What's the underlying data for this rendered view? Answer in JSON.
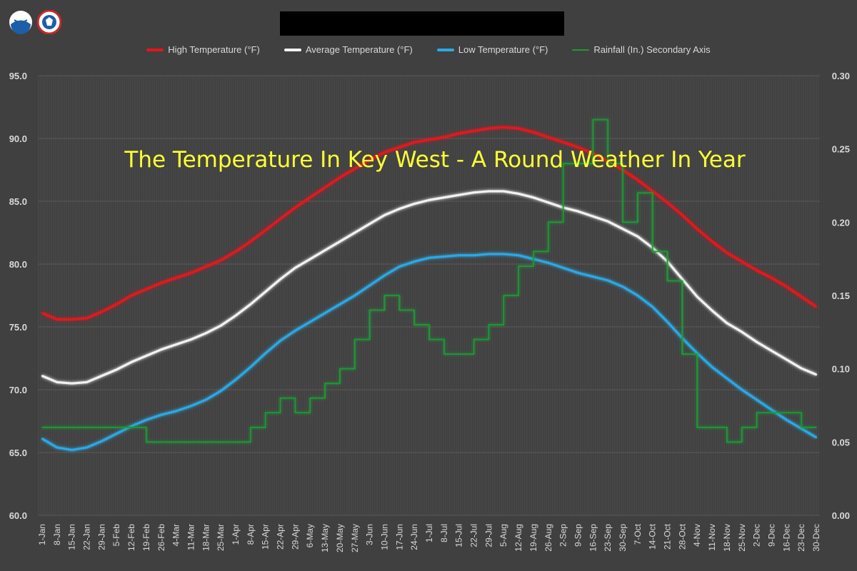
{
  "overlay_title": "The Temperature In Key West -  A Round Weather In Year",
  "chart_data": {
    "type": "line",
    "title": "",
    "xlabel": "",
    "ylabel": "",
    "y2label": "",
    "ylim": [
      60,
      95
    ],
    "y2lim": [
      0,
      0.3
    ],
    "yticks": [
      "60.0",
      "65.0",
      "70.0",
      "75.0",
      "80.0",
      "85.0",
      "90.0",
      "95.0"
    ],
    "y2ticks": [
      "0.00",
      "0.05",
      "0.10",
      "0.15",
      "0.20",
      "0.25",
      "0.30"
    ],
    "grid": true,
    "legend_placement": "top",
    "categories": [
      "1-Jan",
      "8-Jan",
      "15-Jan",
      "22-Jan",
      "29-Jan",
      "5-Feb",
      "12-Feb",
      "19-Feb",
      "26-Feb",
      "4-Mar",
      "11-Mar",
      "18-Mar",
      "25-Mar",
      "1-Apr",
      "8-Apr",
      "15-Apr",
      "22-Apr",
      "29-Apr",
      "6-May",
      "13-May",
      "20-May",
      "27-May",
      "3-Jun",
      "10-Jun",
      "17-Jun",
      "24-Jun",
      "1-Jul",
      "8-Jul",
      "15-Jul",
      "22-Jul",
      "29-Jul",
      "5-Aug",
      "12-Aug",
      "19-Aug",
      "26-Aug",
      "2-Sep",
      "9-Sep",
      "16-Sep",
      "23-Sep",
      "30-Sep",
      "7-Oct",
      "14-Oct",
      "21-Oct",
      "28-Oct",
      "4-Nov",
      "11-Nov",
      "18-Nov",
      "25-Nov",
      "2-Dec",
      "9-Dec",
      "16-Dec",
      "23-Dec",
      "30-Dec"
    ],
    "series": [
      {
        "name": "High Temperature (°F)",
        "axis": "left",
        "color": "#e8141a",
        "values": [
          76.1,
          75.6,
          75.6,
          75.7,
          76.2,
          76.8,
          77.5,
          78.0,
          78.5,
          78.9,
          79.3,
          79.8,
          80.3,
          81.0,
          81.8,
          82.7,
          83.6,
          84.5,
          85.3,
          86.1,
          86.9,
          87.6,
          88.3,
          88.9,
          89.3,
          89.7,
          89.9,
          90.1,
          90.4,
          90.6,
          90.8,
          90.9,
          90.8,
          90.5,
          90.1,
          89.7,
          89.3,
          88.8,
          88.2,
          87.5,
          86.7,
          85.8,
          84.9,
          83.9,
          82.8,
          81.8,
          80.9,
          80.2,
          79.5,
          78.9,
          78.2,
          77.4,
          76.6
        ]
      },
      {
        "name": "Average Temperature (°F)",
        "axis": "left",
        "color": "#f2f2f2",
        "values": [
          71.1,
          70.6,
          70.5,
          70.6,
          71.1,
          71.6,
          72.2,
          72.7,
          73.2,
          73.6,
          74.0,
          74.5,
          75.1,
          75.9,
          76.8,
          77.8,
          78.8,
          79.7,
          80.4,
          81.1,
          81.8,
          82.5,
          83.2,
          83.9,
          84.4,
          84.8,
          85.1,
          85.3,
          85.5,
          85.7,
          85.8,
          85.8,
          85.6,
          85.3,
          84.9,
          84.5,
          84.2,
          83.8,
          83.4,
          82.8,
          82.2,
          81.3,
          80.2,
          78.8,
          77.4,
          76.3,
          75.3,
          74.6,
          73.8,
          73.1,
          72.4,
          71.7,
          71.2
        ]
      },
      {
        "name": "Low Temperature (°F)",
        "axis": "left",
        "color": "#2aa9e6",
        "values": [
          66.1,
          65.4,
          65.2,
          65.4,
          65.9,
          66.5,
          67.1,
          67.6,
          68.0,
          68.3,
          68.7,
          69.2,
          69.9,
          70.8,
          71.8,
          72.9,
          73.9,
          74.7,
          75.4,
          76.1,
          76.8,
          77.5,
          78.3,
          79.1,
          79.8,
          80.2,
          80.5,
          80.6,
          80.7,
          80.7,
          80.8,
          80.8,
          80.7,
          80.4,
          80.1,
          79.7,
          79.3,
          79.0,
          78.7,
          78.2,
          77.5,
          76.6,
          75.4,
          74.1,
          72.9,
          71.8,
          70.9,
          70.0,
          69.2,
          68.4,
          67.6,
          66.9,
          66.2
        ]
      },
      {
        "name": "Rainfall (In.) Secondary Axis",
        "axis": "right",
        "color": "#1f9a34",
        "values": [
          0.06,
          0.06,
          0.06,
          0.06,
          0.06,
          0.06,
          0.06,
          0.05,
          0.05,
          0.05,
          0.05,
          0.05,
          0.05,
          0.05,
          0.06,
          0.07,
          0.08,
          0.07,
          0.08,
          0.09,
          0.1,
          0.12,
          0.14,
          0.15,
          0.14,
          0.13,
          0.12,
          0.11,
          0.11,
          0.12,
          0.13,
          0.15,
          0.17,
          0.18,
          0.2,
          0.24,
          0.24,
          0.27,
          0.24,
          0.2,
          0.22,
          0.18,
          0.16,
          0.11,
          0.06,
          0.06,
          0.05,
          0.06,
          0.07,
          0.07,
          0.07,
          0.06,
          0.06
        ]
      }
    ]
  }
}
